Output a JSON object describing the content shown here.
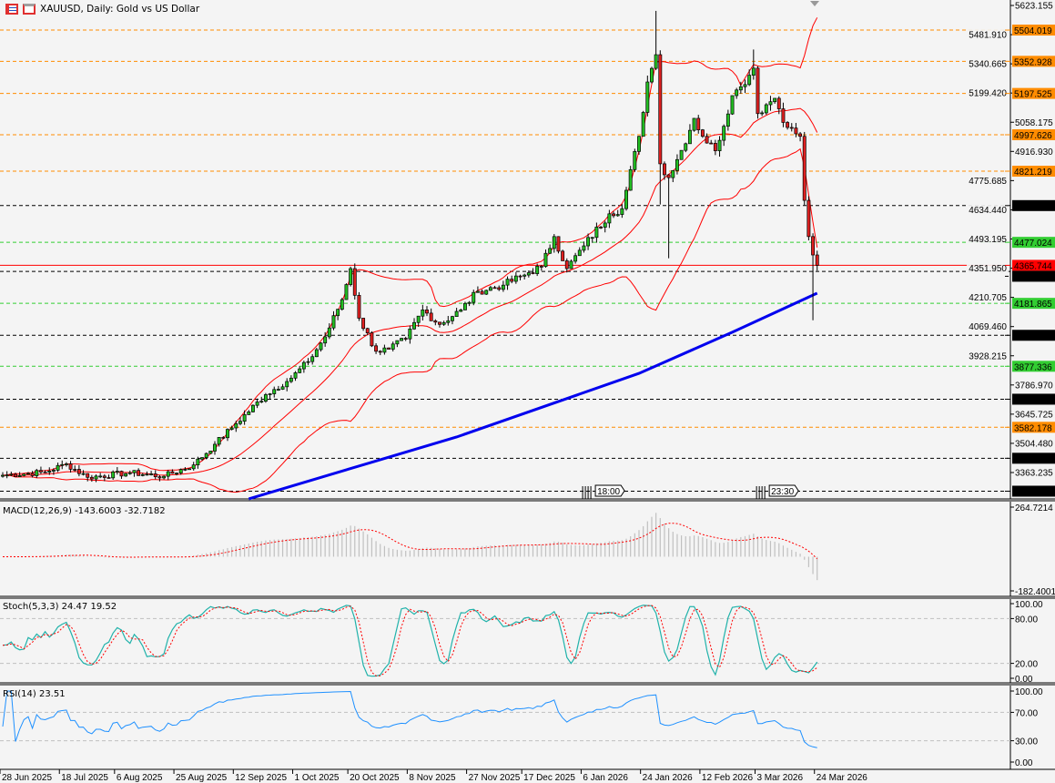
{
  "header": {
    "title": "XAUUSD, Daily:  Gold vs US Dollar",
    "icons": [
      "chart-list-icon",
      "chart-template-icon"
    ]
  },
  "colors": {
    "background": "#f4f4f4",
    "bull_candle": "#22c022",
    "bear_candle": "#e02020",
    "bollinger": "#ff0000",
    "ma200": "#0000ee",
    "stoch_main": "#20b2aa",
    "stoch_signal": "#ff0000",
    "rsi": "#1e90ff",
    "macd_hist": "#c0c0c0",
    "macd_signal": "#ff0000"
  },
  "chart_data": {
    "type": "candlestick",
    "symbol": "XAUUSD",
    "timeframe": "Daily",
    "ylim": [
      3272.964,
      5623.155
    ],
    "y_ticks": [
      "5623.155",
      "5481.910",
      "5340.665",
      "5199.420",
      "5058.175",
      "4916.930",
      "4775.685",
      "4634.440",
      "4493.195",
      "4351.950",
      "4210.705",
      "4069.460",
      "3928.215",
      "3786.970",
      "3645.725",
      "3504.480",
      "3363.235"
    ],
    "x_tick_labels": [
      "28 Jun 2025",
      "18 Jul 2025",
      "6 Aug 2025",
      "25 Aug 2025",
      "12 Sep 2025",
      "1 Oct 2025",
      "20 Oct 2025",
      "8 Nov 2025",
      "27 Nov 2025",
      "17 Dec 2025",
      "6 Jan 2026",
      "24 Jan 2026",
      "12 Feb 2026",
      "3 Mar 2026",
      "24 Mar 2026"
    ],
    "bars_total": 193,
    "close_keypoints": [
      [
        0,
        3350
      ],
      [
        10,
        3365
      ],
      [
        15,
        3405
      ],
      [
        20,
        3340
      ],
      [
        30,
        3362
      ],
      [
        38,
        3345
      ],
      [
        45,
        3400
      ],
      [
        50,
        3500
      ],
      [
        55,
        3600
      ],
      [
        62,
        3740
      ],
      [
        68,
        3820
      ],
      [
        72,
        3900
      ],
      [
        76,
        4020
      ],
      [
        80,
        4200
      ],
      [
        82,
        4350
      ],
      [
        84,
        4110
      ],
      [
        88,
        3950
      ],
      [
        91,
        3960
      ],
      [
        95,
        4010
      ],
      [
        99,
        4150
      ],
      [
        103,
        4080
      ],
      [
        108,
        4150
      ],
      [
        112,
        4240
      ],
      [
        118,
        4270
      ],
      [
        124,
        4330
      ],
      [
        127,
        4360
      ],
      [
        130,
        4505
      ],
      [
        133,
        4350
      ],
      [
        137,
        4460
      ],
      [
        143,
        4615
      ],
      [
        146,
        4640
      ],
      [
        150,
        4990
      ],
      [
        152,
        5253
      ],
      [
        154,
        5385
      ],
      [
        155,
        4857
      ],
      [
        157,
        4790
      ],
      [
        160,
        4922
      ],
      [
        163,
        5077
      ],
      [
        165,
        4990
      ],
      [
        168,
        4920
      ],
      [
        172,
        5187
      ],
      [
        174,
        5230
      ],
      [
        177,
        5320
      ],
      [
        178,
        5100
      ],
      [
        180,
        5143
      ],
      [
        182,
        5174
      ],
      [
        185,
        5033
      ],
      [
        188,
        4990
      ],
      [
        189,
        4680
      ],
      [
        190,
        4505
      ],
      [
        191,
        4416
      ],
      [
        192,
        4365.744
      ]
    ],
    "extremes": [
      {
        "bar": 154,
        "high": 5597
      },
      {
        "bar": 155,
        "low": 4660
      },
      {
        "bar": 157,
        "low": 4400
      },
      {
        "bar": 177,
        "high": 5410
      },
      {
        "bar": 191,
        "low": 4100
      }
    ],
    "ma200_keypoints": [
      [
        58,
        3236
      ],
      [
        107,
        3535
      ],
      [
        150,
        3843
      ],
      [
        172,
        4042
      ],
      [
        192,
        4231
      ]
    ],
    "current_price": {
      "value": 4365.744,
      "label": "4365.744",
      "color": "#ff0000"
    },
    "levels": [
      {
        "value": 5504.019,
        "label": "5504.019",
        "color": "#ff8c00"
      },
      {
        "value": 5352.928,
        "label": "5352.928",
        "color": "#ff8c00"
      },
      {
        "value": 5197.525,
        "label": "5197.525",
        "color": "#ff8c00"
      },
      {
        "value": 4997.626,
        "label": "4997.626",
        "color": "#ff8c00"
      },
      {
        "value": 4821.219,
        "label": "4821.219",
        "color": "#ff8c00"
      },
      {
        "value": 4654.848,
        "label": "4654.848",
        "color": "#000000"
      },
      {
        "value": 4477.024,
        "label": "4477.024",
        "color": "#32cd32"
      },
      {
        "value": 4336.472,
        "label": "4336.472",
        "color": "#000000"
      },
      {
        "value": 4181.865,
        "label": "4181.865",
        "color": "#32cd32"
      },
      {
        "value": 4027.258,
        "label": "4027.258",
        "color": "#000000"
      },
      {
        "value": 3877.336,
        "label": "3877.336",
        "color": "#32cd32"
      },
      {
        "value": 3718.044,
        "label": "3718.044",
        "color": "#000000"
      },
      {
        "value": 3582.178,
        "label": "3582.178",
        "color": "#ff8c00"
      },
      {
        "value": 3432.256,
        "label": "3432.256",
        "color": "#000000"
      },
      {
        "value": 3272.964,
        "label": "3272.964",
        "color": "#000000"
      }
    ],
    "event_markers": [
      {
        "bar": 138,
        "label": "18:00"
      },
      {
        "bar": 179,
        "label": "23:30",
        "prefix": "1"
      }
    ],
    "indicators": {
      "macd": {
        "label": "MACD(12,26,9) -143.6003 -32.7182",
        "ylim": [
          -182.4001,
          264.7214
        ],
        "ticks": [
          "264.7214",
          "-182.4001"
        ]
      },
      "stoch": {
        "label": "Stoch(5,3,3) 24.47 19.52",
        "ticks": [
          "100.00",
          "80.00",
          "20.00",
          "0.00"
        ],
        "levels": [
          80,
          20
        ]
      },
      "rsi": {
        "label": "RSI(14) 23.51",
        "ticks": [
          "100.00",
          "70.00",
          "30.00",
          "0.00"
        ],
        "levels": [
          70,
          30
        ]
      }
    }
  }
}
